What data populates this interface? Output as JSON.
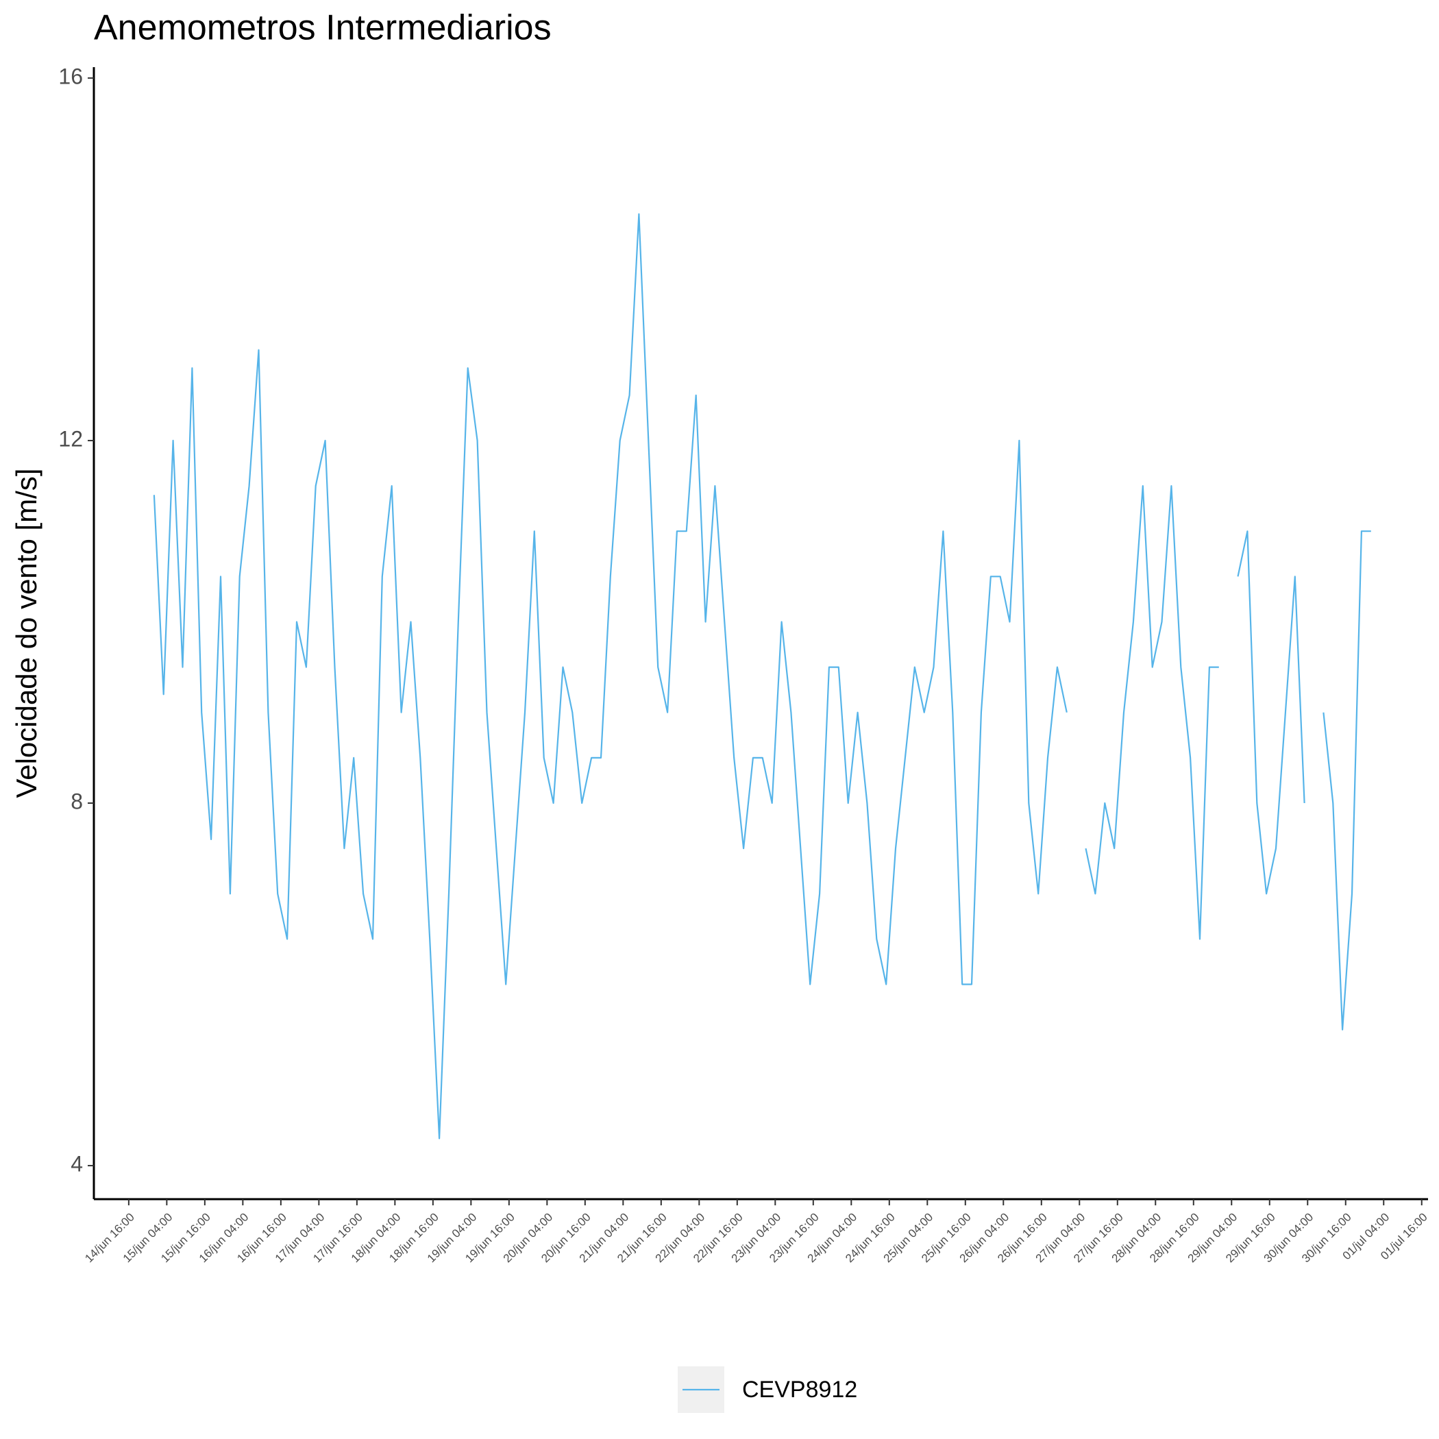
{
  "chart_data": {
    "type": "line",
    "title": "Anemometros Intermediarios",
    "y_label": "Velocidade do vento [m/s]",
    "x": [
      "15/jun 00:00",
      "15/jun 03:00",
      "15/jun 06:00",
      "15/jun 09:00",
      "15/jun 12:00",
      "15/jun 15:00",
      "15/jun 18:00",
      "15/jun 21:00",
      "16/jun 00:00",
      "16/jun 03:00",
      "16/jun 06:00",
      "16/jun 09:00",
      "16/jun 12:00",
      "16/jun 15:00",
      "16/jun 18:00",
      "16/jun 21:00",
      "17/jun 00:00",
      "17/jun 03:00",
      "17/jun 06:00",
      "17/jun 09:00",
      "17/jun 12:00",
      "17/jun 15:00",
      "17/jun 18:00",
      "17/jun 21:00",
      "18/jun 00:00",
      "18/jun 03:00",
      "18/jun 06:00",
      "18/jun 09:00",
      "18/jun 12:00",
      "18/jun 15:00",
      "18/jun 18:00",
      "18/jun 21:00",
      "19/jun 00:00",
      "19/jun 03:00",
      "19/jun 06:00",
      "19/jun 09:00",
      "19/jun 12:00",
      "19/jun 15:00",
      "19/jun 18:00",
      "19/jun 21:00",
      "20/jun 00:00",
      "20/jun 03:00",
      "20/jun 06:00",
      "20/jun 09:00",
      "20/jun 12:00",
      "20/jun 15:00",
      "20/jun 18:00",
      "20/jun 21:00",
      "21/jun 00:00",
      "21/jun 03:00",
      "21/jun 06:00",
      "21/jun 09:00",
      "21/jun 12:00",
      "21/jun 15:00",
      "21/jun 18:00",
      "21/jun 21:00",
      "22/jun 00:00",
      "22/jun 03:00",
      "22/jun 06:00",
      "22/jun 09:00",
      "22/jun 12:00",
      "22/jun 15:00",
      "22/jun 18:00",
      "22/jun 21:00",
      "23/jun 00:00",
      "23/jun 03:00",
      "23/jun 06:00",
      "23/jun 09:00",
      "23/jun 12:00",
      "23/jun 15:00",
      "23/jun 18:00",
      "23/jun 21:00",
      "24/jun 00:00",
      "24/jun 03:00",
      "24/jun 06:00",
      "24/jun 09:00",
      "24/jun 12:00",
      "24/jun 15:00",
      "24/jun 18:00",
      "24/jun 21:00",
      "25/jun 00:00",
      "25/jun 03:00",
      "25/jun 06:00",
      "25/jun 09:00",
      "25/jun 12:00",
      "25/jun 15:00",
      "25/jun 18:00",
      "25/jun 21:00",
      "26/jun 00:00",
      "26/jun 03:00",
      "26/jun 06:00",
      "26/jun 09:00",
      "26/jun 12:00",
      "26/jun 15:00",
      "26/jun 18:00",
      "26/jun 21:00",
      "27/jun 00:00",
      "27/jun 03:00",
      "27/jun 06:00",
      "27/jun 09:00",
      "27/jun 12:00",
      "27/jun 15:00",
      "27/jun 18:00",
      "27/jun 21:00",
      "28/jun 00:00",
      "28/jun 03:00",
      "28/jun 06:00",
      "28/jun 09:00",
      "28/jun 12:00",
      "28/jun 15:00",
      "28/jun 18:00",
      "28/jun 21:00",
      "29/jun 00:00",
      "29/jun 03:00",
      "29/jun 06:00",
      "29/jun 09:00",
      "29/jun 12:00",
      "29/jun 15:00",
      "29/jun 18:00",
      "29/jun 21:00",
      "30/jun 00:00",
      "30/jun 03:00",
      "30/jun 06:00",
      "30/jun 09:00",
      "30/jun 12:00",
      "30/jun 15:00",
      "30/jun 18:00",
      "30/jun 21:00",
      "01/jul 00:00"
    ],
    "series": [
      {
        "name": "CEVP8912",
        "color": "#56b4e9",
        "values": [
          11.4,
          9.2,
          12.0,
          9.5,
          12.8,
          9.0,
          7.6,
          10.5,
          7.0,
          10.5,
          11.5,
          13.0,
          9.0,
          7.0,
          6.5,
          10.0,
          9.5,
          11.5,
          12.0,
          9.5,
          7.5,
          8.5,
          7.0,
          6.5,
          10.5,
          11.5,
          9.0,
          10.0,
          8.5,
          6.5,
          4.3,
          7.0,
          10.0,
          12.8,
          12.0,
          9.0,
          7.5,
          6.0,
          7.5,
          9.0,
          11.0,
          8.5,
          8.0,
          9.5,
          9.0,
          8.0,
          8.5,
          8.5,
          10.5,
          12.0,
          12.5,
          14.5,
          12.0,
          9.5,
          9.0,
          11.0,
          11.0,
          12.5,
          10.0,
          11.5,
          10.0,
          8.5,
          7.5,
          8.5,
          8.5,
          8.0,
          10.0,
          9.0,
          7.5,
          6.0,
          7.0,
          9.5,
          9.5,
          8.0,
          9.0,
          8.0,
          6.5,
          6.0,
          7.5,
          8.5,
          9.5,
          9.0,
          9.5,
          11.0,
          9.0,
          6.0,
          6.0,
          9.0,
          10.5,
          10.5,
          10.0,
          12.0,
          8.0,
          7.0,
          8.5,
          9.5,
          9.0,
          null,
          7.5,
          7.0,
          8.0,
          7.5,
          9.0,
          10.0,
          11.5,
          9.5,
          10.0,
          11.5,
          9.5,
          8.5,
          6.5,
          9.5,
          9.5,
          null,
          10.5,
          11.0,
          8.0,
          7.0,
          7.5,
          9.0,
          10.5,
          8.0,
          null,
          9.0,
          8.0,
          5.5,
          7.0,
          11.0,
          11.0
        ]
      }
    ],
    "xlim": [
      "14/jun 05:00",
      "01/jul 18:00"
    ],
    "xticks": [
      "14/jun 16:00",
      "15/jun 04:00",
      "15/jun 16:00",
      "16/jun 04:00",
      "16/jun 16:00",
      "17/jun 04:00",
      "17/jun 16:00",
      "18/jun 04:00",
      "18/jun 16:00",
      "19/jun 04:00",
      "19/jun 16:00",
      "20/jun 04:00",
      "20/jun 16:00",
      "21/jun 04:00",
      "21/jun 16:00",
      "22/jun 04:00",
      "22/jun 16:00",
      "23/jun 04:00",
      "23/jun 16:00",
      "24/jun 04:00",
      "24/jun 16:00",
      "25/jun 04:00",
      "25/jun 16:00",
      "26/jun 04:00",
      "26/jun 16:00",
      "27/jun 04:00",
      "27/jun 16:00",
      "28/jun 04:00",
      "28/jun 16:00",
      "29/jun 04:00",
      "29/jun 16:00",
      "30/jun 04:00",
      "30/jun 16:00",
      "01/jul 04:00",
      "01/jul 16:00"
    ],
    "ylim": [
      3.63,
      16.12
    ],
    "yticks": [
      4,
      8,
      12,
      16
    ],
    "grid": false,
    "legend": "bottom"
  }
}
